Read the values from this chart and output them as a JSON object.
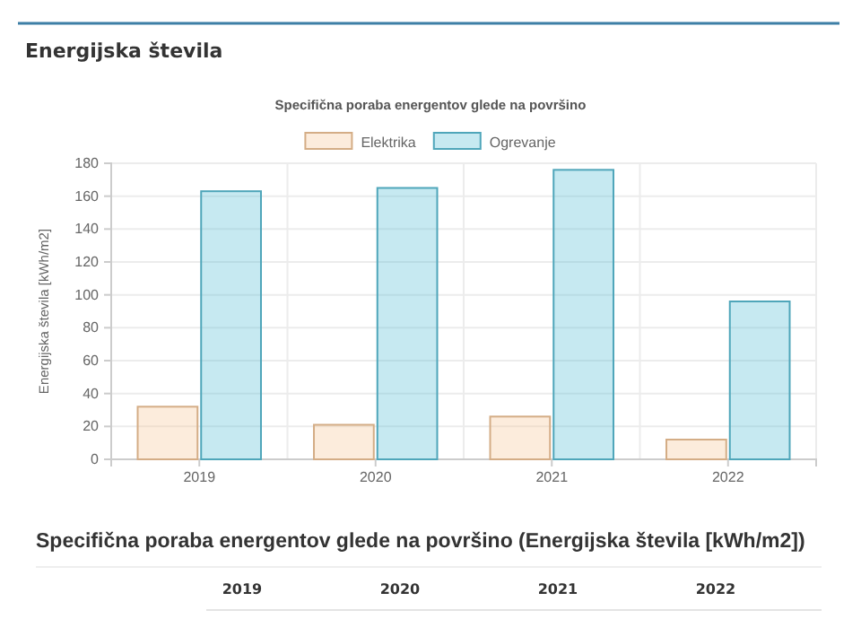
{
  "chart_data": {
    "type": "bar",
    "title": "Energijska števila",
    "subtitle": "Specifična poraba energentov glede na površino",
    "ylabel": "Energijska števila [kWh/m2]",
    "categories": [
      "2019",
      "2020",
      "2021",
      "2022"
    ],
    "series": [
      {
        "name": "Elektrika",
        "color": "#f5c89a",
        "values": [
          32,
          21,
          26,
          12
        ]
      },
      {
        "name": "Ogrevanje",
        "color": "#5bc0d6",
        "values": [
          163,
          165,
          176,
          96
        ]
      }
    ],
    "ylim": [
      0,
      180
    ],
    "yticks": [
      0,
      20,
      40,
      60,
      80,
      100,
      120,
      140,
      160,
      180
    ],
    "grid": true,
    "legend": "top",
    "annotations": [
      "Specifična poraba energentov glede na površino (Energijska števila [kWh/m2])"
    ]
  }
}
